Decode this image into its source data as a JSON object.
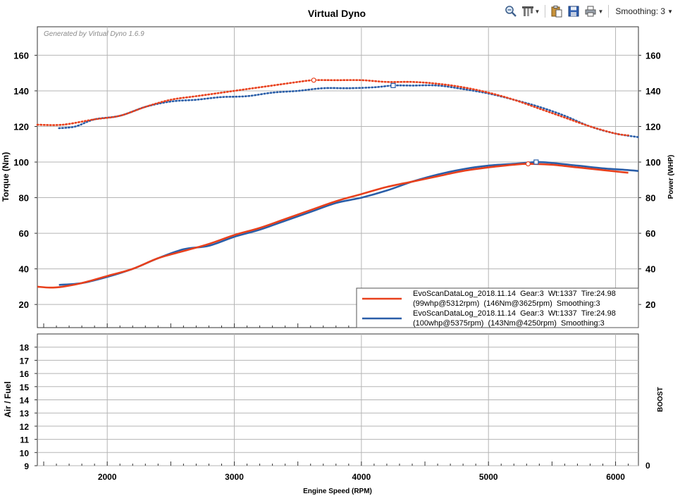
{
  "toolbar": {
    "icons": [
      "zoom-icon",
      "tools-icon",
      "clipboard-icon",
      "save-icon",
      "print-icon"
    ],
    "smoothing_label": "Smoothing: 3"
  },
  "chart_data": [
    {
      "type": "line",
      "title": "Virtual Dyno",
      "watermark": "Generated by Virtual Dyno 1.6.9",
      "ylabel": "Torque (Nm)",
      "y2label": "Power (WHP)",
      "xlim": [
        1450,
        6180
      ],
      "ylim": [
        7,
        176
      ],
      "grid": true,
      "yticks": [
        20,
        40,
        60,
        80,
        100,
        120,
        140,
        160
      ],
      "y2ticks": [
        20,
        40,
        60,
        80,
        100,
        120,
        140,
        160
      ],
      "legend_position": "bottom-right",
      "series": [
        {
          "name": "EvoScanDataLog_2018.11.14  Gear:3  Wt:1337  Tire:24.98",
          "name_line2": "(99whp@5312rpm)  (146Nm@3625rpm)  Smoothing:3",
          "color": "#e8401c",
          "torque": {
            "x": [
              1450,
              1650,
              1900,
              2100,
              2300,
              2500,
              2700,
              2900,
              3100,
              3300,
              3500,
              3625,
              3800,
              4000,
              4200,
              4400,
              4600,
              4800,
              5000,
              5200,
              5400,
              5600,
              5800,
              6000,
              6100
            ],
            "y": [
              121,
              121,
              124,
              126,
              131,
              135,
              137,
              139,
              141,
              143,
              145,
              146,
              146,
              146,
              145,
              145,
              144,
              142,
              139,
              135,
              130,
              125,
              120,
              116,
              115
            ]
          },
          "power": {
            "x": [
              1450,
              1550,
              1650,
              1800,
              2000,
              2200,
              2400,
              2600,
              2800,
              3000,
              3200,
              3400,
              3600,
              3800,
              4000,
              4200,
              4400,
              4600,
              4800,
              5000,
              5200,
              5312,
              5500,
              5700,
              5900,
              6100
            ],
            "y": [
              30,
              29.5,
              30,
              32,
              36,
              40,
              46,
              50,
              54,
              59,
              63,
              68,
              73,
              78,
              82,
              86,
              89,
              92,
              95,
              97,
              98.5,
              99,
              98.5,
              97,
              95.5,
              94
            ]
          },
          "peak_power": [
            5312,
            99
          ],
          "peak_torque": [
            3625,
            146
          ]
        },
        {
          "name": "EvoScanDataLog_2018.11.14  Gear:3  Wt:1337  Tire:24.98",
          "name_line2": "(100whp@5375rpm)  (143Nm@4250rpm)  Smoothing:3",
          "color": "#2a5ea8",
          "torque": {
            "x": [
              1620,
              1750,
              1900,
              2100,
              2300,
              2500,
              2700,
              2900,
              3100,
              3300,
              3500,
              3700,
              3900,
              4100,
              4250,
              4400,
              4600,
              4800,
              5000,
              5200,
              5400,
              5600,
              5800,
              6000,
              6180
            ],
            "y": [
              119,
              120,
              124,
              126,
              131,
              134,
              135,
              136.5,
              137,
              139,
              140,
              141.5,
              141.5,
              142,
              143,
              143,
              143,
              141,
              138.5,
              135,
              131,
              126,
              120,
              116,
              114
            ]
          },
          "power": {
            "x": [
              1620,
              1800,
              2000,
              2200,
              2400,
              2600,
              2800,
              3000,
              3200,
              3400,
              3600,
              3800,
              4000,
              4200,
              4400,
              4600,
              4800,
              5000,
              5200,
              5375,
              5500,
              5700,
              5900,
              6100,
              6180
            ],
            "y": [
              31,
              32,
              35.5,
              40,
              46,
              51,
              53,
              58,
              62,
              67,
              72,
              77,
              80,
              84,
              89,
              93,
              96,
              98,
              99,
              100,
              99.5,
              98,
              96.5,
              95.5,
              95
            ]
          },
          "peak_power": [
            5375,
            100
          ],
          "peak_torque": [
            4250,
            143
          ]
        }
      ]
    },
    {
      "type": "line",
      "ylabel": "Air / Fuel",
      "y2label": "BOOST",
      "xlabel": "Engine Speed (RPM)",
      "xlim": [
        1450,
        6180
      ],
      "ylim": [
        9,
        19
      ],
      "yticks": [
        9,
        10,
        11,
        12,
        13,
        14,
        15,
        16,
        17,
        18
      ],
      "y2ticks": [
        0
      ],
      "xticks": [
        2000,
        3000,
        4000,
        5000,
        6000
      ],
      "grid": true,
      "series": []
    }
  ]
}
